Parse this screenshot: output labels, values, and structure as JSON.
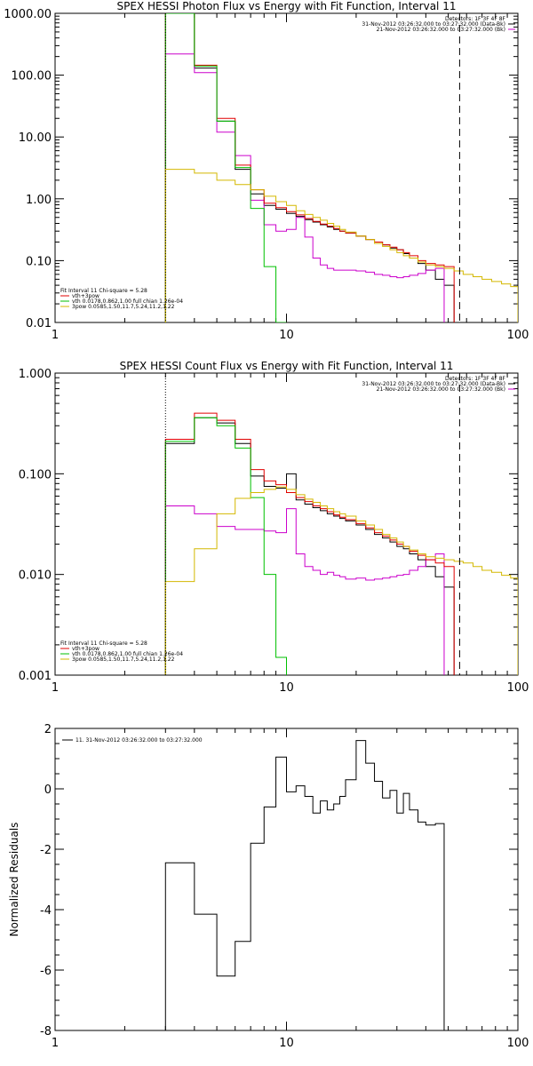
{
  "chart_data": [
    {
      "type": "line",
      "title": "SPEX HESSI Photon Flux vs Energy with Fit Function, Interval 11",
      "xscale": "log",
      "yscale": "log",
      "xlim": [
        1,
        100
      ],
      "ylim": [
        0.01,
        1000
      ],
      "xticks": [
        {
          "v": 1,
          "label": "1"
        },
        {
          "v": 10,
          "label": "10"
        },
        {
          "v": 100,
          "label": "100"
        }
      ],
      "yticks": [
        {
          "v": 0.01,
          "label": "0.01"
        },
        {
          "v": 0.1,
          "label": "0.10"
        },
        {
          "v": 1,
          "label": "1.00"
        },
        {
          "v": 10,
          "label": "10.00"
        },
        {
          "v": 100,
          "label": "100.00"
        },
        {
          "v": 1000,
          "label": "1000.00"
        }
      ],
      "vlines": [
        {
          "x": 3.0,
          "style": "dotted"
        },
        {
          "x": 56,
          "style": "dashed"
        }
      ],
      "legend_topright": [
        "Detectors: 1F 3F 4F 8F",
        "31-Nov-2012 03:26:32.000 to 03:27:32.000 (Data-Bk)",
        "21-Nov-2012 03:26:32.000 to 03:27:32.000 (Bk)"
      ],
      "legend_bottomleft": {
        "header": "Fit Interval 11    Chi-square = 5.28",
        "entries": [
          {
            "label": "vth+3pow",
            "color": "#e00000"
          },
          {
            "label": "vth 0.0178,0.862,1.00  full chian 1.26e-04",
            "color": "#00c000"
          },
          {
            "label": "3pow 0.0585,1.50,11.7,5.24,11.2,1.22",
            "color": "#d4b800"
          }
        ]
      },
      "edges": [
        3,
        4,
        5,
        6,
        7,
        8,
        9,
        10,
        11,
        12,
        13,
        14,
        15,
        16,
        17,
        18,
        20,
        22,
        24,
        26,
        28,
        30,
        32,
        34,
        37,
        40,
        44,
        48,
        53,
        58,
        64,
        70,
        77,
        85,
        93,
        100
      ],
      "series": [
        {
          "name": "Data-Bk",
          "color": "#000000",
          "values": [
            1000,
            130,
            18,
            3.0,
            1.2,
            0.78,
            0.68,
            0.58,
            0.52,
            0.46,
            0.42,
            0.38,
            0.35,
            0.32,
            0.3,
            0.28,
            0.25,
            0.22,
            0.2,
            0.18,
            0.16,
            0.15,
            0.13,
            0.11,
            0.09,
            0.07,
            0.05,
            0.04
          ]
        },
        {
          "name": "Bk",
          "color": "#cc00cc",
          "values": [
            220,
            110,
            12,
            5.0,
            0.95,
            0.38,
            0.3,
            0.32,
            0.5,
            0.24,
            0.11,
            0.085,
            0.075,
            0.07,
            0.07,
            0.07,
            0.068,
            0.065,
            0.06,
            0.058,
            0.055,
            0.053,
            0.055,
            0.058,
            0.062,
            0.07,
            0.075
          ]
        },
        {
          "name": "vth+3pow",
          "color": "#e00000",
          "values": [
            1000,
            145,
            20,
            3.5,
            1.4,
            0.85,
            0.72,
            0.62,
            0.55,
            0.48,
            0.43,
            0.39,
            0.36,
            0.33,
            0.3,
            0.28,
            0.25,
            0.22,
            0.2,
            0.18,
            0.165,
            0.15,
            0.135,
            0.12,
            0.1,
            0.09,
            0.085,
            0.08
          ]
        },
        {
          "name": "vth",
          "color": "#00c000",
          "values": [
            1000,
            140,
            18,
            3.2,
            0.7,
            0.08,
            0.009
          ]
        },
        {
          "name": "3pow",
          "color": "#d4b800",
          "values": [
            3.0,
            2.6,
            2.0,
            1.7,
            1.4,
            1.1,
            0.9,
            0.78,
            0.64,
            0.56,
            0.5,
            0.45,
            0.4,
            0.36,
            0.32,
            0.29,
            0.25,
            0.22,
            0.19,
            0.17,
            0.15,
            0.135,
            0.12,
            0.11,
            0.095,
            0.085,
            0.08,
            0.075,
            0.068,
            0.06,
            0.055,
            0.05,
            0.046,
            0.042,
            0.038
          ]
        }
      ]
    },
    {
      "type": "line",
      "title": "SPEX HESSI Count Flux vs Energy with Fit Function, Interval 11",
      "xscale": "log",
      "yscale": "log",
      "xlim": [
        1,
        100
      ],
      "ylim": [
        0.001,
        1.0
      ],
      "xticks": [
        {
          "v": 1,
          "label": "1"
        },
        {
          "v": 10,
          "label": "10"
        },
        {
          "v": 100,
          "label": "100"
        }
      ],
      "yticks": [
        {
          "v": 0.001,
          "label": "0.001"
        },
        {
          "v": 0.01,
          "label": "0.010"
        },
        {
          "v": 0.1,
          "label": "0.100"
        },
        {
          "v": 1,
          "label": "1.000"
        }
      ],
      "vlines": [
        {
          "x": 3.0,
          "style": "dotted"
        },
        {
          "x": 56,
          "style": "dashed"
        }
      ],
      "legend_topright": [
        "Detectors: 1F 3F 4F 8F",
        "31-Nov-2012 03:26:32.000 to 03:27:32.000 (Data-Bk)",
        "21-Nov-2012 03:26:32.000 to 03:27:32.000 (Bk)"
      ],
      "legend_bottomleft": {
        "header": "Fit Interval 11    Chi-square = 5.28",
        "entries": [
          {
            "label": "vth+3pow",
            "color": "#e00000"
          },
          {
            "label": "vth 0.0178,0.862,1.00  full chian 1.26e-04",
            "color": "#00c000"
          },
          {
            "label": "3pow 0.0585,1.50,11.7,5.24,11.2,1.22",
            "color": "#d4b800"
          }
        ]
      },
      "edges": [
        3,
        4,
        5,
        6,
        7,
        8,
        9,
        10,
        11,
        12,
        13,
        14,
        15,
        16,
        17,
        18,
        20,
        22,
        24,
        26,
        28,
        30,
        32,
        34,
        37,
        40,
        44,
        48,
        53,
        58,
        64,
        70,
        77,
        85,
        93,
        100
      ],
      "series": [
        {
          "name": "Data-Bk",
          "color": "#000000",
          "values": [
            0.2,
            0.36,
            0.32,
            0.2,
            0.095,
            0.075,
            0.072,
            0.1,
            0.055,
            0.05,
            0.046,
            0.043,
            0.04,
            0.038,
            0.036,
            0.034,
            0.031,
            0.028,
            0.025,
            0.023,
            0.021,
            0.019,
            0.018,
            0.016,
            0.014,
            0.012,
            0.0095,
            0.0075
          ]
        },
        {
          "name": "Bk",
          "color": "#cc00cc",
          "values": [
            0.048,
            0.04,
            0.03,
            0.028,
            0.028,
            0.027,
            0.026,
            0.045,
            0.016,
            0.012,
            0.011,
            0.01,
            0.0105,
            0.0098,
            0.0095,
            0.009,
            0.0092,
            0.0088,
            0.009,
            0.0092,
            0.0095,
            0.0098,
            0.01,
            0.011,
            0.012,
            0.014,
            0.016
          ]
        },
        {
          "name": "vth+3pow",
          "color": "#e00000",
          "values": [
            0.22,
            0.4,
            0.34,
            0.22,
            0.11,
            0.085,
            0.078,
            0.065,
            0.058,
            0.053,
            0.048,
            0.045,
            0.042,
            0.039,
            0.037,
            0.035,
            0.032,
            0.029,
            0.026,
            0.024,
            0.022,
            0.02,
            0.019,
            0.017,
            0.0155,
            0.014,
            0.013,
            0.012
          ]
        },
        {
          "name": "vth",
          "color": "#00c000",
          "values": [
            0.21,
            0.36,
            0.3,
            0.18,
            0.058,
            0.01,
            0.0015
          ]
        },
        {
          "name": "3pow",
          "color": "#d4b800",
          "values": [
            0.0085,
            0.018,
            0.04,
            0.057,
            0.065,
            0.07,
            0.074,
            0.07,
            0.062,
            0.056,
            0.052,
            0.048,
            0.045,
            0.042,
            0.04,
            0.038,
            0.034,
            0.031,
            0.028,
            0.025,
            0.023,
            0.021,
            0.019,
            0.0175,
            0.016,
            0.015,
            0.0145,
            0.014,
            0.0135,
            0.013,
            0.012,
            0.011,
            0.0105,
            0.0098,
            0.0092
          ]
        }
      ]
    },
    {
      "type": "line",
      "title": "",
      "xscale": "log",
      "yscale": "linear",
      "xlim": [
        1,
        100
      ],
      "ylim": [
        -8,
        2
      ],
      "ylabel": "Normalized Residuals",
      "xticks": [
        {
          "v": 1,
          "label": "1"
        },
        {
          "v": 10,
          "label": "10"
        },
        {
          "v": 100,
          "label": "100"
        }
      ],
      "yticks": [
        {
          "v": -8,
          "label": "-8"
        },
        {
          "v": -6,
          "label": "-6"
        },
        {
          "v": -4,
          "label": "-4"
        },
        {
          "v": -2,
          "label": "-2"
        },
        {
          "v": 0,
          "label": "0"
        },
        {
          "v": 2,
          "label": "2"
        }
      ],
      "legend_topleft": "11. 31-Nov-2012 03:26:32.000 to 03:27:32.000",
      "edges": [
        3,
        4,
        5,
        6,
        7,
        8,
        9,
        10,
        11,
        12,
        13,
        14,
        15,
        16,
        17,
        18,
        20,
        22,
        24,
        26,
        28,
        30,
        32,
        34,
        37,
        40,
        44,
        48,
        53,
        58
      ],
      "series": [
        {
          "name": "residuals",
          "color": "#000000",
          "values": [
            -2.45,
            -4.15,
            -6.2,
            -5.05,
            -1.8,
            -0.6,
            1.05,
            -0.1,
            0.1,
            -0.25,
            -0.8,
            -0.4,
            -0.7,
            -0.5,
            -0.25,
            0.3,
            1.6,
            0.85,
            0.25,
            -0.3,
            -0.05,
            -0.8,
            -0.15,
            -0.7,
            -1.1,
            -1.2,
            -1.15
          ]
        }
      ]
    }
  ]
}
